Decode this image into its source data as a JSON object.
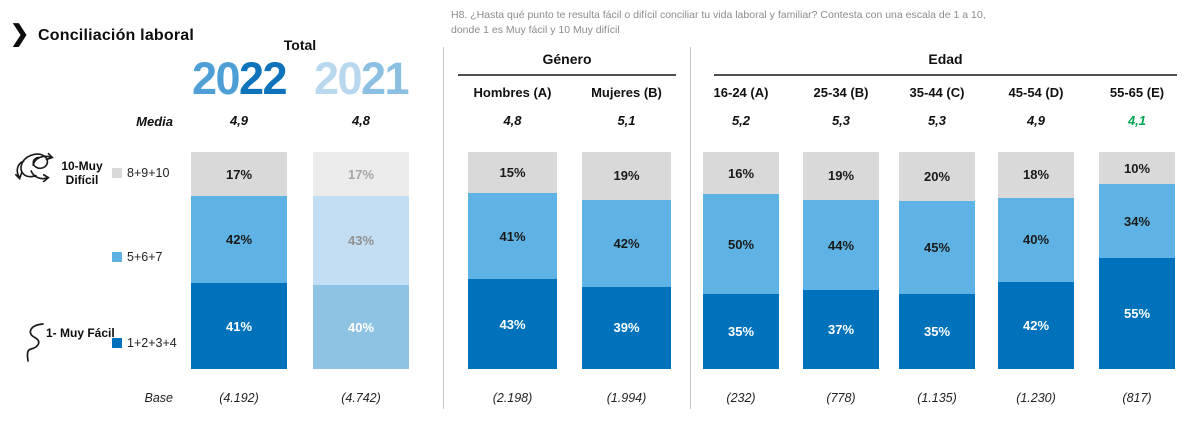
{
  "header": {
    "chevron": "❯",
    "title": "Conciliación laboral",
    "question": "H8. ¿Hasta qué punto te resulta fácil o difícil conciliar tu vida laboral y familiar? Contesta con una escala de 1 a 10, donde 1 es Muy fácil y 10 Muy difícil"
  },
  "media_label": "Media",
  "base_label": "Base",
  "legend": {
    "difficult_label": "10-Muy Difícil",
    "easy_label": "1- Muy Fácil",
    "items": [
      {
        "label": "8+9+10",
        "color": "#d9d9d9"
      },
      {
        "label": "5+6+7",
        "color": "#5eb3e4"
      },
      {
        "label": "1+2+3+4",
        "color": "#0072bc"
      }
    ]
  },
  "chart_data": {
    "type": "bar",
    "stacked": true,
    "unit": "%",
    "title": "Conciliación laboral",
    "segment_labels": [
      "8+9+10",
      "5+6+7",
      "1+2+3+4"
    ],
    "segment_order_note": "values listed top to bottom of each bar",
    "groups": [
      {
        "name": "Total",
        "columns": [
          {
            "label": "2022",
            "media": "4,9",
            "base": "(4.192)",
            "values": [
              17,
              42,
              41
            ],
            "palette": "current"
          },
          {
            "label": "2021",
            "media": "4,8",
            "base": "(4.742)",
            "values": [
              17,
              43,
              40
            ],
            "palette": "previous"
          }
        ]
      },
      {
        "name": "Género",
        "columns": [
          {
            "label": "Hombres (A)",
            "media": "4,8",
            "base": "(2.198)",
            "values": [
              15,
              41,
              43
            ],
            "palette": "current"
          },
          {
            "label": "Mujeres (B)",
            "media": "5,1",
            "base": "(1.994)",
            "values": [
              19,
              42,
              39
            ],
            "palette": "current"
          }
        ]
      },
      {
        "name": "Edad",
        "columns": [
          {
            "label": "16-24 (A)",
            "media": "5,2",
            "base": "(232)",
            "values": [
              16,
              50,
              35
            ],
            "palette": "current"
          },
          {
            "label": "25-34 (B)",
            "media": "5,3",
            "base": "(778)",
            "values": [
              19,
              44,
              37
            ],
            "palette": "current"
          },
          {
            "label": "35-44 (C)",
            "media": "5,3",
            "base": "(1.135)",
            "values": [
              20,
              45,
              35
            ],
            "palette": "current"
          },
          {
            "label": "45-54 (D)",
            "media": "4,9",
            "base": "(1.230)",
            "values": [
              18,
              40,
              42
            ],
            "palette": "current"
          },
          {
            "label": "55-65 (E)",
            "media": "4,1",
            "media_color": "#00a551",
            "base": "(817)",
            "values": [
              10,
              34,
              55
            ],
            "palette": "current"
          }
        ]
      }
    ]
  },
  "colors": {
    "palettes": {
      "current": {
        "fills": [
          "#d9d9d9",
          "#5eb3e4",
          "#0072bc"
        ],
        "texts": [
          "#1a1a1a",
          "#1a1a1a",
          "#ffffff"
        ]
      },
      "previous": {
        "fills": [
          "#ebebeb",
          "#c3ddf2",
          "#8fc3e3"
        ],
        "texts": [
          "#a6a6a6",
          "#909090",
          "#ffffff"
        ]
      }
    },
    "year_2022": [
      "#4d9fd6",
      "#0f73bb"
    ],
    "year_2021": [
      "#b9d8ee",
      "#8cc0e3"
    ],
    "green_media": "#00a551",
    "divider": "#c9c9c9"
  }
}
